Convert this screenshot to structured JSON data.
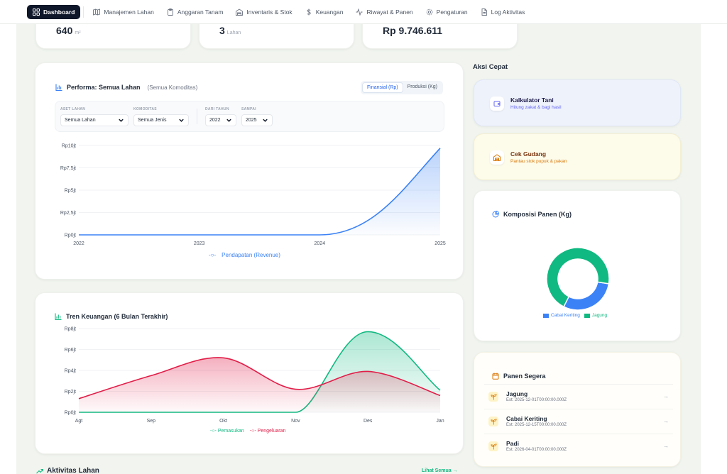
{
  "nav": {
    "items": [
      {
        "label": "Dashboard",
        "icon": "grid-icon"
      },
      {
        "label": "Manajemen Lahan",
        "icon": "map-icon"
      },
      {
        "label": "Anggaran Tanam",
        "icon": "clipboard-icon"
      },
      {
        "label": "Inventaris & Stok",
        "icon": "warehouse-icon"
      },
      {
        "label": "Keuangan",
        "icon": "dollar-icon"
      },
      {
        "label": "Riwayat & Panen",
        "icon": "activity-icon"
      },
      {
        "label": "Pengaturan",
        "icon": "gear-icon"
      },
      {
        "label": "Log Aktivitas",
        "icon": "file-icon"
      }
    ]
  },
  "stats": [
    {
      "value": "640",
      "unit": "m²"
    },
    {
      "value": "3",
      "unit": "Lahan"
    },
    {
      "value": "Rp 9.746.611",
      "unit": ""
    }
  ],
  "performance": {
    "title": "Performa: Semua Lahan",
    "subtitle": "(Semua Komoditas)",
    "toggle": [
      "Finansial (Rp)",
      "Produksi (Kg)"
    ],
    "filters": {
      "lahan_label": "ASET LAHAN",
      "lahan_value": "Semua Lahan",
      "komoditas_label": "KOMODITAS",
      "komoditas_value": "Semua Jenis",
      "dari_label": "DARI TAHUN",
      "dari_value": "2022",
      "sampai_label": "SAMPAI",
      "sampai_value": "2025"
    },
    "legend": "Pendapatan (Revenue)"
  },
  "finance": {
    "title": "Tren Keuangan (6 Bulan Terakhir)",
    "legend_income": "Pemasukan",
    "legend_expense": "Pengeluaran"
  },
  "chart_data": [
    {
      "type": "area",
      "x": [
        "2022",
        "2023",
        "2024",
        "2025"
      ],
      "series": [
        {
          "name": "Pendapatan (Revenue)",
          "values": [
            0,
            0,
            0,
            9.7
          ],
          "color": "#3b82f6"
        }
      ],
      "y_ticks": [
        "Rp0jt",
        "Rp2,5jt",
        "Rp5jt",
        "Rp7,5jt",
        "Rp10jt"
      ],
      "ylim": [
        0,
        10
      ]
    },
    {
      "type": "area",
      "x": [
        "Agt",
        "Sep",
        "Okt",
        "Nov",
        "Des",
        "Jan"
      ],
      "series": [
        {
          "name": "Pemasukan",
          "values": [
            0,
            0,
            0,
            0,
            7.7,
            2.1
          ],
          "color": "#10b981"
        },
        {
          "name": "Pengeluaran",
          "values": [
            1.3,
            3.5,
            5.2,
            2.2,
            3.9,
            1.6
          ],
          "color": "#e11d48"
        }
      ],
      "y_ticks": [
        "Rp0jt",
        "Rp2jt",
        "Rp4jt",
        "Rp6jt",
        "Rp8jt"
      ],
      "ylim": [
        0,
        8
      ]
    },
    {
      "type": "pie",
      "title": "Komposisi Panen (Kg)",
      "categories": [
        "Cabai Keriting",
        "Jagung"
      ],
      "values": [
        30,
        70
      ],
      "colors": [
        "#3b82f6",
        "#10b981"
      ]
    }
  ],
  "quick_actions": {
    "title": "Aksi Cepat",
    "items": [
      {
        "title": "Kalkulator Tani",
        "subtitle": "Hitung zakat & bagi hasil"
      },
      {
        "title": "Cek Gudang",
        "subtitle": "Pantau stok pupuk & pakan"
      }
    ]
  },
  "harvest": {
    "title": "Panen Segera",
    "items": [
      {
        "name": "Jagung",
        "date": "Est: 2025-12-01T00:00:00.000Z"
      },
      {
        "name": "Cabai Keriting",
        "date": "Est: 2025-12-15T00:00:00.000Z"
      },
      {
        "name": "Padi",
        "date": "Est: 2026-04-01T00:00:00.000Z"
      }
    ]
  },
  "activity": {
    "title": "Aktivitas Lahan",
    "see_all": "Lihat Semua →"
  }
}
